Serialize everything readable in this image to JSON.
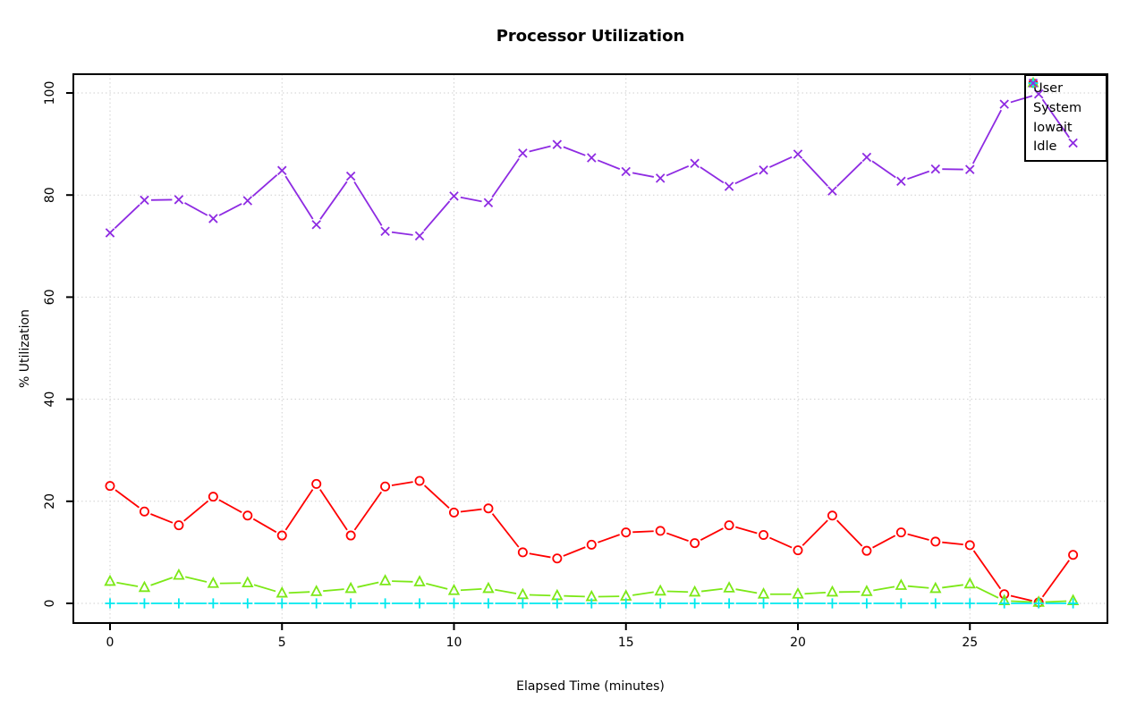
{
  "title": "Processor Utilization",
  "chart_data": {
    "type": "line",
    "title": "Processor Utilization",
    "xlabel": "Elapsed Time (minutes)",
    "ylabel": "% Utilization",
    "x": [
      0,
      1,
      2,
      3,
      4,
      5,
      6,
      7,
      8,
      9,
      10,
      11,
      12,
      13,
      14,
      15,
      16,
      17,
      18,
      19,
      20,
      21,
      22,
      23,
      24,
      25,
      26,
      27,
      28
    ],
    "xticks": [
      0,
      5,
      10,
      15,
      20,
      25
    ],
    "yticks": [
      0,
      20,
      40,
      60,
      80,
      100
    ],
    "xlim": [
      0,
      28
    ],
    "ylim": [
      0,
      100
    ],
    "grid": true,
    "grid_style": "dotted",
    "legend_position": "top-right",
    "series": [
      {
        "name": "User",
        "color": "#ff0000",
        "marker": "circle",
        "values": [
          23.0,
          18.0,
          15.3,
          20.9,
          17.2,
          13.3,
          23.4,
          13.3,
          22.9,
          24.0,
          17.8,
          18.6,
          10.0,
          8.8,
          11.5,
          13.9,
          14.2,
          11.8,
          15.3,
          13.4,
          10.4,
          17.2,
          10.3,
          13.9,
          12.1,
          11.4,
          1.8,
          0.2,
          9.5
        ]
      },
      {
        "name": "System",
        "color": "#7ce817",
        "marker": "triangle",
        "values": [
          4.3,
          3.1,
          5.5,
          3.9,
          4.0,
          2.0,
          2.3,
          2.9,
          4.4,
          4.2,
          2.5,
          2.9,
          1.7,
          1.5,
          1.3,
          1.4,
          2.4,
          2.2,
          3.0,
          1.8,
          1.8,
          2.2,
          2.3,
          3.5,
          2.9,
          3.8,
          0.5,
          0.2,
          0.5
        ]
      },
      {
        "name": "Iowait",
        "color": "#00e8ee",
        "marker": "plus",
        "values": [
          0,
          0,
          0,
          0,
          0,
          0,
          0,
          0,
          0,
          0,
          0,
          0,
          0,
          0,
          0,
          0,
          0,
          0,
          0,
          0,
          0,
          0,
          0,
          0,
          0,
          0,
          0,
          0,
          0
        ]
      },
      {
        "name": "Idle",
        "color": "#8e2be2",
        "marker": "x",
        "values": [
          72.6,
          79.0,
          79.1,
          75.4,
          78.9,
          84.8,
          74.2,
          83.7,
          72.9,
          72.0,
          79.8,
          78.5,
          88.2,
          89.9,
          87.3,
          84.6,
          83.3,
          86.2,
          81.7,
          84.9,
          88.0,
          80.8,
          87.4,
          82.7,
          85.1,
          85.0,
          97.8,
          99.8,
          90.2
        ]
      }
    ]
  },
  "colors": {
    "background": "#ffffff",
    "axis": "#000000",
    "grid": "#cfcfcf",
    "text": "#000000"
  }
}
